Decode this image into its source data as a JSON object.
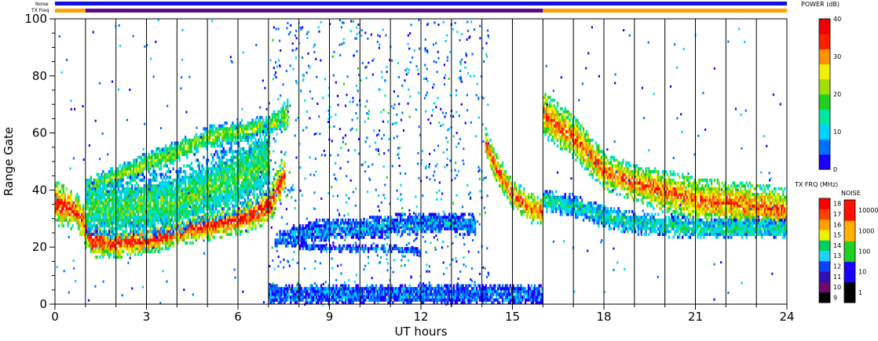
{
  "chart_data": {
    "type": "heatmap",
    "title": "",
    "xlabel": "UT hours",
    "ylabel": "Range Gate",
    "xlim": [
      0,
      24
    ],
    "ylim": [
      0,
      100
    ],
    "x_ticks": [
      0,
      3,
      6,
      9,
      12,
      15,
      18,
      21,
      24
    ],
    "y_ticks": [
      0,
      20,
      40,
      60,
      80,
      100
    ],
    "grid": "vertical lines each hour",
    "strip_labels": {
      "noise": "Noise",
      "tx_freq": "TX Freq"
    },
    "noise_strip_color": "#1010e0",
    "tx_freq_strip": [
      {
        "start": 0,
        "end": 1,
        "color": "#ffa500"
      },
      {
        "start": 1,
        "end": 16,
        "color": "#5a0a8a"
      },
      {
        "start": 16,
        "end": 24,
        "color": "#ffa500"
      }
    ],
    "power_colorbar": {
      "title": "POWER (dB)",
      "min": 0,
      "max": 40,
      "ticks": [
        "0",
        "10",
        "20",
        "30",
        "40"
      ],
      "colors": [
        "#1a00ff",
        "#0070ff",
        "#00d2ff",
        "#00e8a0",
        "#20d020",
        "#a0e000",
        "#f0f000",
        "#ff9000",
        "#ff2000",
        "#f00000"
      ]
    },
    "tx_frq_colorbar": {
      "title": "TX FRQ (MHz)",
      "ticks": [
        "9",
        "10",
        "11",
        "12",
        "13",
        "14",
        "15",
        "16",
        "17",
        "18"
      ],
      "colors": [
        "#000000",
        "#6a0a6a",
        "#3010b0",
        "#1040ff",
        "#20d0ff",
        "#00d060",
        "#f0f000",
        "#ffa000",
        "#ff4000",
        "#ff0000"
      ]
    },
    "noise_colorbar": {
      "title": "NOISE",
      "ticks": [
        "1",
        "10",
        "100",
        "1000",
        "10000"
      ],
      "colors": [
        "#000000",
        "#1a00ff",
        "#20d020",
        "#ffb000",
        "#ff1000"
      ]
    },
    "power_bands": [
      {
        "name": "main_echo_morning",
        "time": [
          0,
          0.7,
          1.2,
          2,
          3,
          4,
          5,
          6,
          7,
          7.5
        ],
        "center": [
          35,
          32,
          22,
          21,
          22,
          25,
          27,
          29,
          34,
          45
        ],
        "halfwidth": [
          6,
          5,
          5,
          4,
          4,
          4,
          4,
          4,
          5,
          6
        ],
        "level": 36
      },
      {
        "name": "upper_echo_morning",
        "time": [
          1,
          2,
          3,
          4,
          5,
          6,
          7,
          7.6
        ],
        "center": [
          40,
          44,
          49,
          53,
          58,
          60,
          62,
          66
        ],
        "halfwidth": [
          3,
          3,
          3,
          3,
          3,
          3,
          3,
          4
        ],
        "level": 22
      },
      {
        "name": "wide_morning_fill",
        "time": [
          1,
          2,
          3,
          4,
          5,
          6,
          7
        ],
        "center": [
          33,
          33,
          34,
          36,
          40,
          44,
          50
        ],
        "halfwidth": [
          7,
          8,
          9,
          9,
          9,
          10,
          10
        ],
        "level": 18
      },
      {
        "name": "blue_sea_band",
        "time": [
          7.2,
          8,
          9,
          10,
          11,
          12,
          13,
          13.8
        ],
        "center": [
          22,
          24,
          26,
          26,
          27,
          28,
          28,
          27
        ],
        "halfwidth": [
          2,
          3,
          3,
          3,
          3,
          3,
          3,
          3
        ],
        "level": 8
      },
      {
        "name": "blue_lower_band",
        "time": [
          8,
          9,
          10,
          11,
          12
        ],
        "center": [
          20,
          19,
          19,
          19,
          18
        ],
        "halfwidth": [
          1,
          1,
          1,
          1,
          1
        ],
        "level": 6
      },
      {
        "name": "afternoon_descent",
        "time": [
          14.1,
          14.4,
          15,
          15.6,
          16
        ],
        "center": [
          56,
          48,
          38,
          33,
          32
        ],
        "halfwidth": [
          4,
          4,
          4,
          4,
          4
        ],
        "level": 34
      },
      {
        "name": "evening_main",
        "time": [
          16,
          17,
          18,
          19,
          20,
          21,
          22,
          23,
          24
        ],
        "center": [
          66,
          58,
          46,
          42,
          39,
          36,
          35,
          34,
          32
        ],
        "halfwidth": [
          6,
          6,
          5,
          5,
          6,
          6,
          6,
          6,
          6
        ],
        "level": 33
      },
      {
        "name": "evening_lower",
        "time": [
          16,
          17,
          18,
          19,
          20,
          21,
          22,
          23,
          24
        ],
        "center": [
          36,
          34,
          30,
          28,
          27,
          26,
          26,
          26,
          26
        ],
        "halfwidth": [
          3,
          3,
          3,
          3,
          3,
          3,
          3,
          3,
          3
        ],
        "level": 14
      },
      {
        "name": "ground_scatter_floor",
        "time": [
          7,
          9,
          11,
          13,
          15,
          16
        ],
        "center": [
          3,
          3,
          3,
          3,
          3,
          3
        ],
        "halfwidth": [
          3,
          3,
          3,
          3,
          3,
          3
        ],
        "level": 6
      }
    ]
  }
}
